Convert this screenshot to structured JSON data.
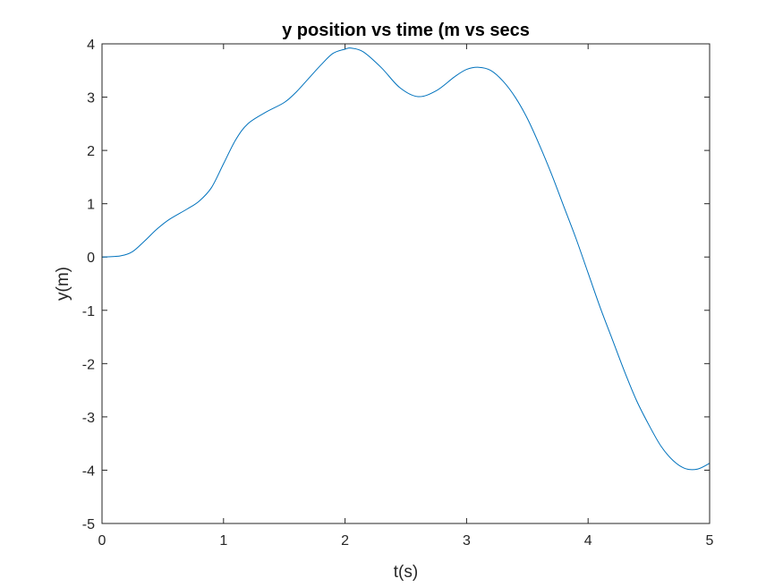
{
  "chart_data": {
    "type": "line",
    "title": "y position vs time (m vs secs",
    "xlabel": "t(s)",
    "ylabel": "y(m)",
    "xlim": [
      0,
      5
    ],
    "ylim": [
      -5,
      4
    ],
    "xticks": [
      0,
      1,
      2,
      3,
      4,
      5
    ],
    "yticks": [
      -5,
      -4,
      -3,
      -2,
      -1,
      0,
      1,
      2,
      3,
      4
    ],
    "xtick_labels": [
      "0",
      "1",
      "2",
      "3",
      "4",
      "5"
    ],
    "ytick_labels": [
      "-5",
      "-4",
      "-3",
      "-2",
      "-1",
      "0",
      "1",
      "2",
      "3",
      "4"
    ],
    "grid": false,
    "box": true,
    "series": [
      {
        "color": "#0072bd",
        "x": [
          0,
          0.15,
          0.25,
          0.35,
          0.45,
          0.55,
          0.7,
          0.8,
          0.9,
          1.0,
          1.1,
          1.2,
          1.35,
          1.5,
          1.6,
          1.7,
          1.8,
          1.9,
          2.0,
          2.05,
          2.15,
          2.3,
          2.45,
          2.6,
          2.75,
          2.9,
          3.0,
          3.1,
          3.2,
          3.3,
          3.4,
          3.5,
          3.6,
          3.7,
          3.8,
          3.9,
          4.0,
          4.1,
          4.2,
          4.3,
          4.4,
          4.5,
          4.6,
          4.7,
          4.8,
          4.9,
          5.0
        ],
        "y": [
          0.0,
          0.02,
          0.1,
          0.3,
          0.52,
          0.7,
          0.9,
          1.05,
          1.3,
          1.75,
          2.2,
          2.5,
          2.72,
          2.9,
          3.1,
          3.35,
          3.6,
          3.82,
          3.9,
          3.92,
          3.85,
          3.55,
          3.18,
          3.01,
          3.12,
          3.38,
          3.52,
          3.56,
          3.5,
          3.3,
          3.0,
          2.6,
          2.1,
          1.55,
          0.95,
          0.35,
          -0.3,
          -0.95,
          -1.55,
          -2.15,
          -2.7,
          -3.15,
          -3.55,
          -3.82,
          -3.97,
          -3.98,
          -3.87
        ]
      }
    ]
  }
}
